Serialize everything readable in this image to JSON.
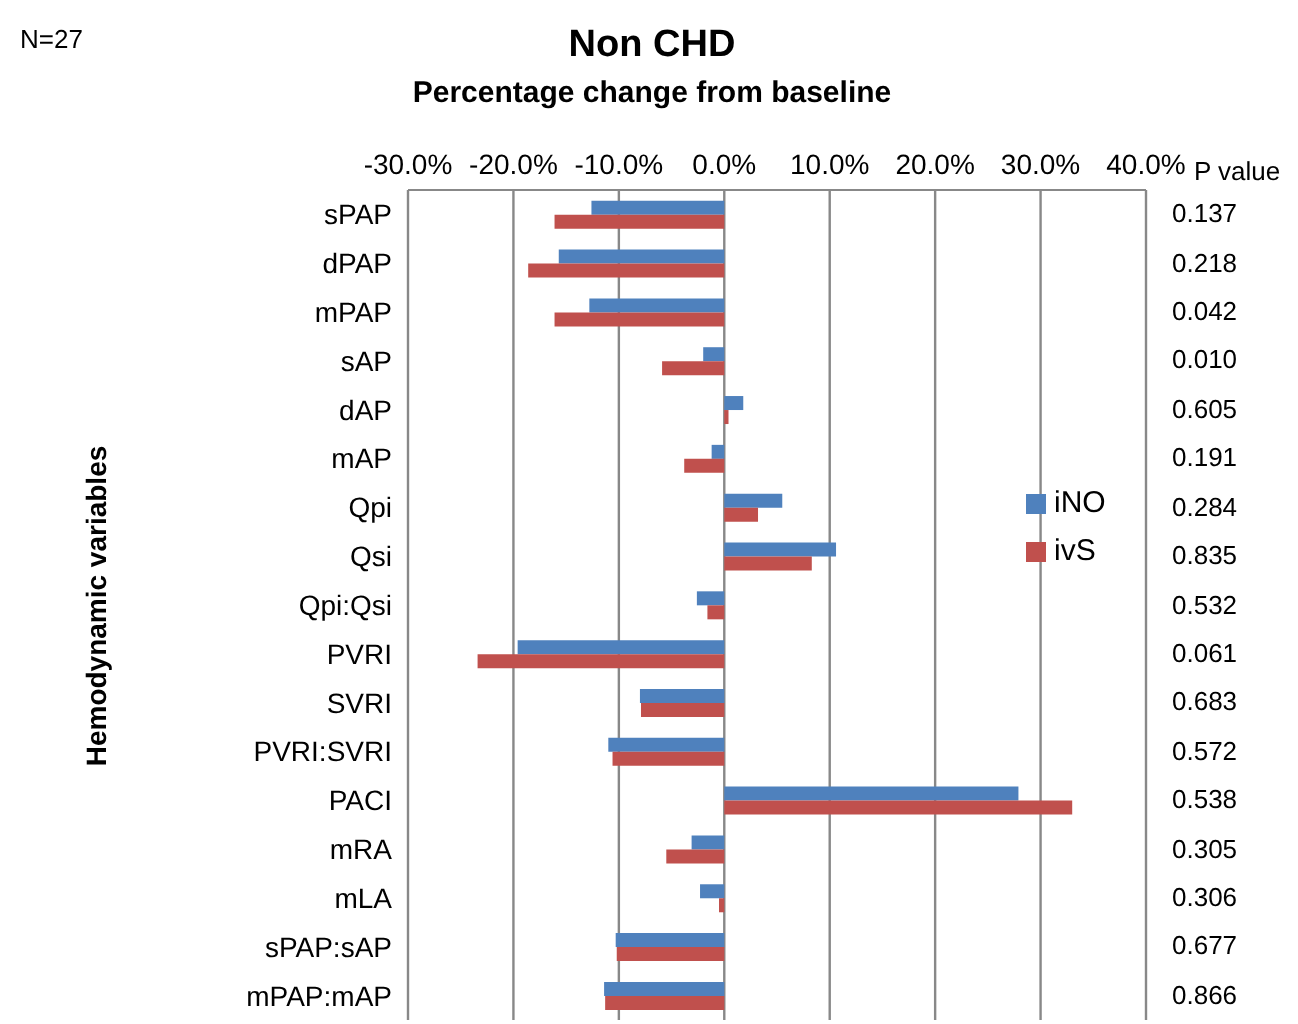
{
  "chart_data": {
    "type": "bar",
    "orientation": "horizontal",
    "title": "Non CHD",
    "subtitle": "Percentage change from baseline",
    "ylabel": "Hemodynamic variables",
    "categories": [
      "sPAP",
      "dPAP",
      "mPAP",
      "sAP",
      "dAP",
      "mAP",
      "Qpi",
      "Qsi",
      "Qpi:Qsi",
      "PVRI",
      "SVRI",
      "PVRI:SVRI",
      "PACI",
      "mRA",
      "mLA",
      "sPAP:sAP",
      "mPAP:mAP"
    ],
    "series": [
      {
        "name": "iNO",
        "color": "#4f81bd",
        "values": [
          -12.6,
          -15.7,
          -12.8,
          -2.0,
          1.8,
          -1.2,
          5.5,
          10.6,
          -2.6,
          -19.6,
          -8.0,
          -11.0,
          27.9,
          -3.1,
          -2.3,
          -10.3,
          -11.4
        ]
      },
      {
        "name": "ivS",
        "color": "#c0504d",
        "values": [
          -16.1,
          -18.6,
          -16.1,
          -5.9,
          0.4,
          -3.8,
          3.2,
          8.3,
          -1.6,
          -23.4,
          -7.9,
          -10.6,
          33.0,
          -5.5,
          -0.5,
          -10.2,
          -11.3
        ]
      }
    ],
    "xlim": [
      -30,
      40
    ],
    "xticks": [
      {
        "value": -30,
        "label": "-30.0%"
      },
      {
        "value": -20,
        "label": "-20.0%"
      },
      {
        "value": -10,
        "label": "-10.0%"
      },
      {
        "value": 0,
        "label": "0.0%"
      },
      {
        "value": 10,
        "label": "10.0%"
      },
      {
        "value": 20,
        "label": "20.0%"
      },
      {
        "value": 30,
        "label": "30.0%"
      },
      {
        "value": 40,
        "label": "40.0%"
      }
    ],
    "grid": "x",
    "legend": "right",
    "annotations": [
      "N=27",
      "P value",
      "0.137",
      "0.218",
      "0.042",
      "0.010",
      "0.605",
      "0.191",
      "0.284",
      "0.835",
      "0.532",
      "0.061",
      "0.683",
      "0.572",
      "0.538",
      "0.305",
      "0.306",
      "0.677",
      "0.866"
    ]
  }
}
